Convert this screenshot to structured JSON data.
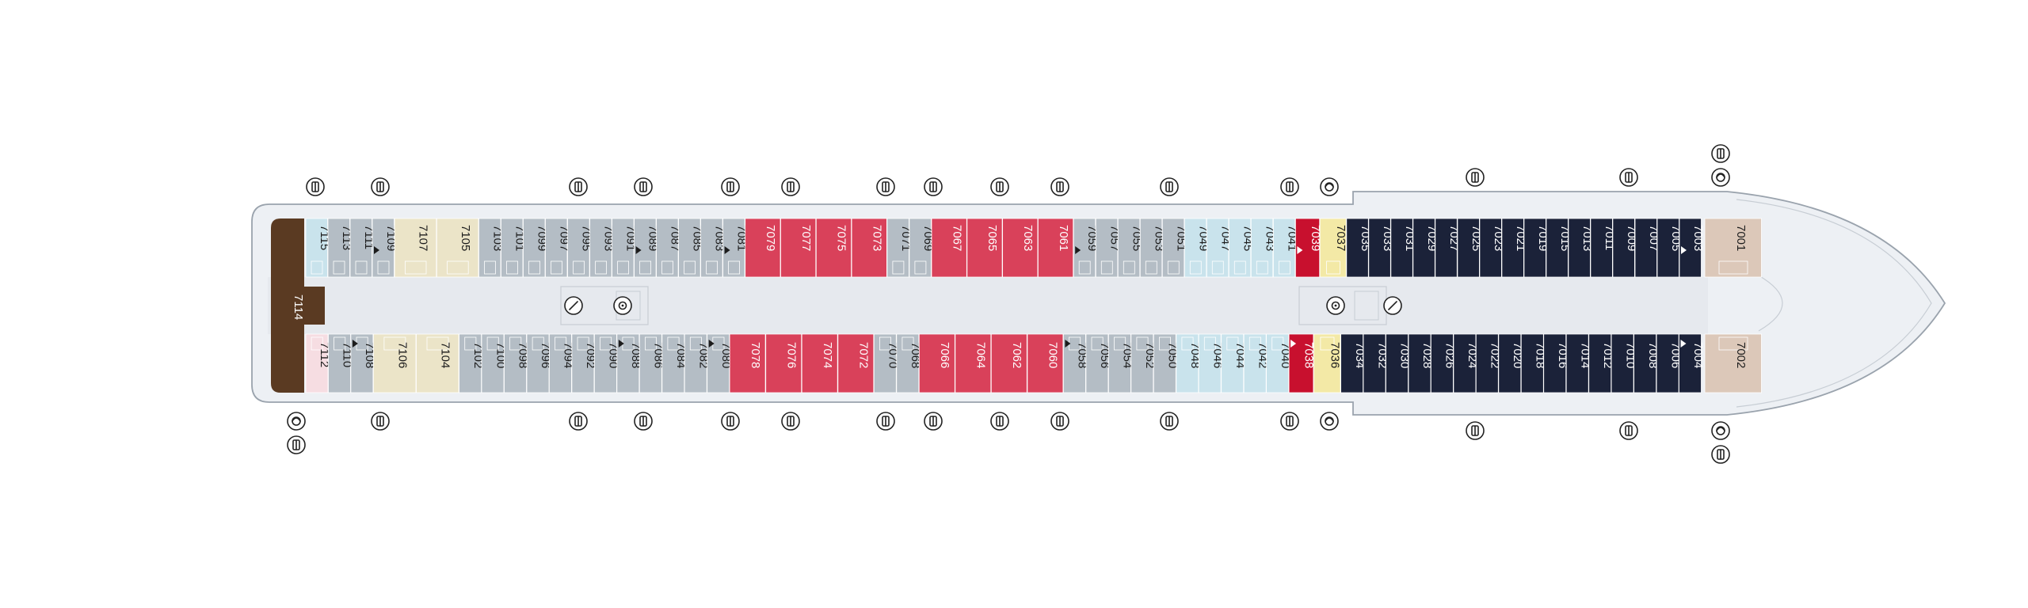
{
  "colors": {
    "background": "#ffffff",
    "hull": "#edf0f4",
    "hull_outline": "#9aa3ad",
    "corridor": "#e6e9ee",
    "bow": "#e9edf1",
    "gray_cabin": "#b4bdc5",
    "light_blue_cabin": "#c9e3ec",
    "beige_cabin": "#ebe4c8",
    "red_cabin": "#d9415a",
    "dark_red_cabin": "#c8102e",
    "yellow_cabin": "#f3e9a6",
    "navy_cabin": "#1b2239",
    "tan_cabin": "#dcc8b9",
    "brown_cabin": "#5a3a22",
    "pink_cabin": "#f6dde2"
  },
  "deck": {
    "top_cabins": [
      {
        "label": "7115",
        "category": "light_blue_cabin"
      },
      {
        "label": "7113",
        "category": "gray_cabin"
      },
      {
        "label": "7111",
        "category": "gray_cabin"
      },
      {
        "label": "7109",
        "category": "gray_cabin",
        "marker": true
      },
      {
        "label": "7107",
        "category": "beige_cabin"
      },
      {
        "label": "7105",
        "category": "beige_cabin"
      },
      {
        "label": "7103",
        "category": "gray_cabin"
      },
      {
        "label": "7101",
        "category": "gray_cabin"
      },
      {
        "label": "7099",
        "category": "gray_cabin"
      },
      {
        "label": "7097",
        "category": "gray_cabin"
      },
      {
        "label": "7095",
        "category": "gray_cabin"
      },
      {
        "label": "7093",
        "category": "gray_cabin"
      },
      {
        "label": "7091",
        "category": "gray_cabin"
      },
      {
        "label": "7089",
        "category": "gray_cabin",
        "marker": true
      },
      {
        "label": "7087",
        "category": "gray_cabin"
      },
      {
        "label": "7085",
        "category": "gray_cabin"
      },
      {
        "label": "7083",
        "category": "gray_cabin"
      },
      {
        "label": "7081",
        "category": "gray_cabin",
        "marker": true
      },
      {
        "label": "7079",
        "category": "red_cabin"
      },
      {
        "label": "7077",
        "category": "red_cabin"
      },
      {
        "label": "7075",
        "category": "red_cabin"
      },
      {
        "label": "7073",
        "category": "red_cabin"
      },
      {
        "label": "7071",
        "category": "gray_cabin"
      },
      {
        "label": "7069",
        "category": "gray_cabin"
      },
      {
        "label": "7067",
        "category": "red_cabin"
      },
      {
        "label": "7065",
        "category": "red_cabin"
      },
      {
        "label": "7063",
        "category": "red_cabin"
      },
      {
        "label": "7061",
        "category": "red_cabin"
      },
      {
        "label": "7059",
        "category": "gray_cabin",
        "marker": true
      },
      {
        "label": "7057",
        "category": "gray_cabin"
      },
      {
        "label": "7055",
        "category": "gray_cabin"
      },
      {
        "label": "7053",
        "category": "gray_cabin"
      },
      {
        "label": "7051",
        "category": "gray_cabin"
      },
      {
        "label": "7049",
        "category": "light_blue_cabin"
      },
      {
        "label": "7047",
        "category": "light_blue_cabin"
      },
      {
        "label": "7045",
        "category": "light_blue_cabin"
      },
      {
        "label": "7043",
        "category": "light_blue_cabin"
      },
      {
        "label": "7041",
        "category": "light_blue_cabin"
      },
      {
        "label": "7039",
        "category": "dark_red_cabin",
        "marker": true
      },
      {
        "label": "7037",
        "category": "yellow_cabin"
      },
      {
        "label": "7035",
        "category": "navy_cabin"
      },
      {
        "label": "7033",
        "category": "navy_cabin"
      },
      {
        "label": "7031",
        "category": "navy_cabin"
      },
      {
        "label": "7029",
        "category": "navy_cabin"
      },
      {
        "label": "7027",
        "category": "navy_cabin"
      },
      {
        "label": "7025",
        "category": "navy_cabin"
      },
      {
        "label": "7023",
        "category": "navy_cabin"
      },
      {
        "label": "7021",
        "category": "navy_cabin"
      },
      {
        "label": "7019",
        "category": "navy_cabin"
      },
      {
        "label": "7015",
        "category": "navy_cabin"
      },
      {
        "label": "7013",
        "category": "navy_cabin"
      },
      {
        "label": "7011",
        "category": "navy_cabin"
      },
      {
        "label": "7009",
        "category": "navy_cabin"
      },
      {
        "label": "7007",
        "category": "navy_cabin"
      },
      {
        "label": "7005",
        "category": "navy_cabin"
      },
      {
        "label": "7003",
        "category": "navy_cabin",
        "marker": true
      },
      {
        "label": "7001",
        "category": "tan_cabin"
      }
    ],
    "bottom_cabins": [
      {
        "label": "7112",
        "category": "pink_cabin"
      },
      {
        "label": "7110",
        "category": "gray_cabin"
      },
      {
        "label": "7108",
        "category": "gray_cabin",
        "marker": true
      },
      {
        "label": "7106",
        "category": "beige_cabin"
      },
      {
        "label": "7104",
        "category": "beige_cabin"
      },
      {
        "label": "7102",
        "category": "gray_cabin"
      },
      {
        "label": "7100",
        "category": "gray_cabin"
      },
      {
        "label": "7098",
        "category": "gray_cabin"
      },
      {
        "label": "7096",
        "category": "gray_cabin"
      },
      {
        "label": "7094",
        "category": "gray_cabin"
      },
      {
        "label": "7092",
        "category": "gray_cabin"
      },
      {
        "label": "7090",
        "category": "gray_cabin"
      },
      {
        "label": "7088",
        "category": "gray_cabin",
        "marker": true
      },
      {
        "label": "7086",
        "category": "gray_cabin"
      },
      {
        "label": "7084",
        "category": "gray_cabin"
      },
      {
        "label": "7082",
        "category": "gray_cabin"
      },
      {
        "label": "7080",
        "category": "gray_cabin",
        "marker": true
      },
      {
        "label": "7078",
        "category": "red_cabin"
      },
      {
        "label": "7076",
        "category": "red_cabin"
      },
      {
        "label": "7074",
        "category": "red_cabin"
      },
      {
        "label": "7072",
        "category": "red_cabin"
      },
      {
        "label": "7070",
        "category": "gray_cabin"
      },
      {
        "label": "7068",
        "category": "gray_cabin"
      },
      {
        "label": "7066",
        "category": "red_cabin"
      },
      {
        "label": "7064",
        "category": "red_cabin"
      },
      {
        "label": "7062",
        "category": "red_cabin"
      },
      {
        "label": "7060",
        "category": "red_cabin"
      },
      {
        "label": "7058",
        "category": "gray_cabin",
        "marker": true
      },
      {
        "label": "7056",
        "category": "gray_cabin"
      },
      {
        "label": "7054",
        "category": "gray_cabin"
      },
      {
        "label": "7052",
        "category": "gray_cabin"
      },
      {
        "label": "7050",
        "category": "gray_cabin"
      },
      {
        "label": "7048",
        "category": "light_blue_cabin"
      },
      {
        "label": "7046",
        "category": "light_blue_cabin"
      },
      {
        "label": "7044",
        "category": "light_blue_cabin"
      },
      {
        "label": "7042",
        "category": "light_blue_cabin"
      },
      {
        "label": "7040",
        "category": "light_blue_cabin"
      },
      {
        "label": "7038",
        "category": "dark_red_cabin",
        "marker": true
      },
      {
        "label": "7036",
        "category": "yellow_cabin"
      },
      {
        "label": "7034",
        "category": "navy_cabin"
      },
      {
        "label": "7032",
        "category": "navy_cabin"
      },
      {
        "label": "7030",
        "category": "navy_cabin"
      },
      {
        "label": "7028",
        "category": "navy_cabin"
      },
      {
        "label": "7026",
        "category": "navy_cabin"
      },
      {
        "label": "7024",
        "category": "navy_cabin"
      },
      {
        "label": "7022",
        "category": "navy_cabin"
      },
      {
        "label": "7020",
        "category": "navy_cabin"
      },
      {
        "label": "7018",
        "category": "navy_cabin"
      },
      {
        "label": "7016",
        "category": "navy_cabin"
      },
      {
        "label": "7014",
        "category": "navy_cabin"
      },
      {
        "label": "7012",
        "category": "navy_cabin"
      },
      {
        "label": "7010",
        "category": "navy_cabin"
      },
      {
        "label": "7008",
        "category": "navy_cabin"
      },
      {
        "label": "7006",
        "category": "navy_cabin"
      },
      {
        "label": "7004",
        "category": "navy_cabin",
        "marker": true
      },
      {
        "label": "7002",
        "category": "tan_cabin"
      }
    ],
    "stern_suite": {
      "label": "7114",
      "category": "brown_cabin"
    },
    "icons": {
      "top": [
        "elevator-icon",
        "elevator-icon",
        "elevator-icon",
        "elevator-icon",
        "elevator-icon",
        "elevator-icon",
        "elevator-icon",
        "elevator-icon",
        "elevator-icon",
        "elevator-icon",
        "elevator-icon",
        "elevator-icon",
        "laundry-icon",
        "elevator-icon",
        "elevator-icon",
        "elevator-icon",
        "laundry-icon"
      ],
      "bottom": [
        "laundry-icon",
        "elevator-icon",
        "elevator-icon",
        "elevator-icon",
        "elevator-icon",
        "elevator-icon",
        "elevator-icon",
        "elevator-icon",
        "elevator-icon",
        "elevator-icon",
        "elevator-icon",
        "elevator-icon",
        "laundry-icon",
        "elevator-icon",
        "elevator-icon",
        "laundry-icon",
        "elevator-icon"
      ],
      "corridor": [
        "slash-circle-icon",
        "target-icon",
        "target-icon",
        "slash-circle-icon"
      ]
    }
  }
}
